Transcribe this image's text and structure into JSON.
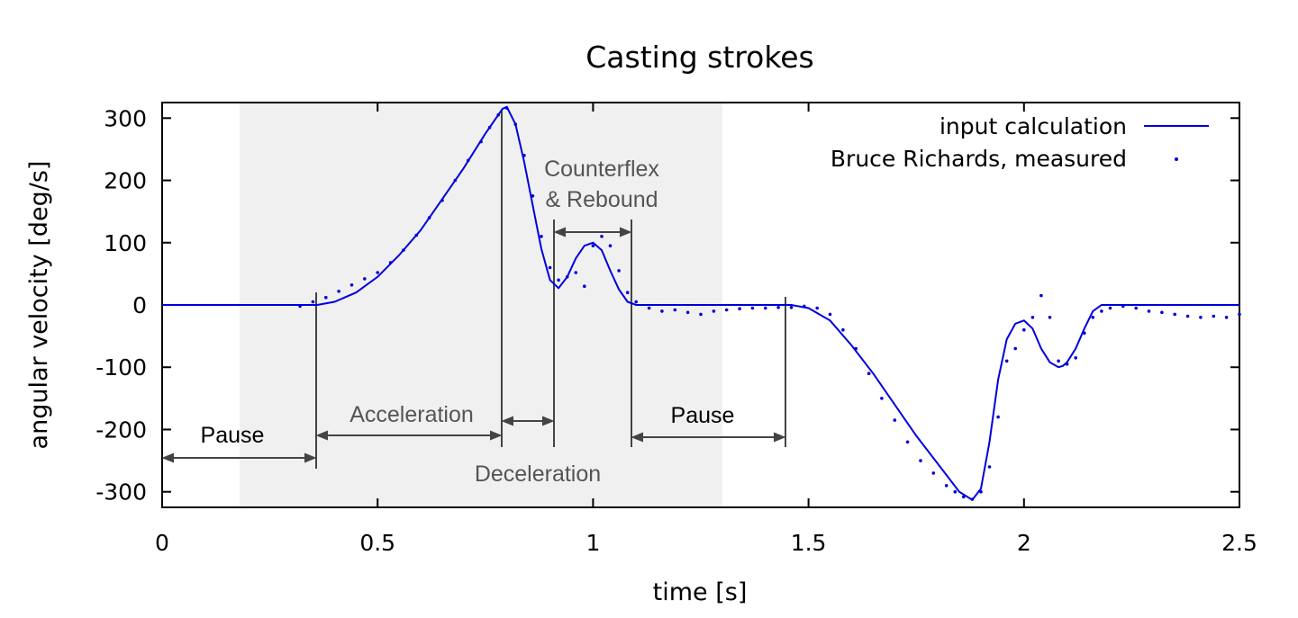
{
  "chart_data": {
    "type": "line",
    "title": "Casting strokes",
    "xlabel": "time [s]",
    "ylabel": "angular velocity [deg/s]",
    "xlim": [
      0,
      2.5
    ],
    "ylim": [
      -325,
      325
    ],
    "x_ticks": [
      0,
      0.5,
      1,
      1.5,
      2,
      2.5
    ],
    "x_tick_labels": [
      "0",
      "0.5",
      "1",
      "1.5",
      "2",
      "2.5"
    ],
    "y_ticks": [
      300,
      200,
      100,
      0,
      -100,
      -200,
      -300
    ],
    "y_tick_labels": [
      "300",
      "200",
      "100",
      "0",
      "-100",
      "-200",
      "-300"
    ],
    "grid": false,
    "legend_position": "top-right",
    "shaded_region": {
      "x_start": 0.18,
      "x_end": 1.3,
      "color": "#f0f0f0"
    },
    "series": [
      {
        "name": "input calculation",
        "style": "line",
        "color": "#0000dd",
        "x": [
          0,
          0.1,
          0.2,
          0.3,
          0.36,
          0.4,
          0.45,
          0.5,
          0.55,
          0.6,
          0.65,
          0.7,
          0.75,
          0.79,
          0.8,
          0.82,
          0.84,
          0.86,
          0.88,
          0.9,
          0.92,
          0.94,
          0.96,
          0.98,
          1.0,
          1.02,
          1.04,
          1.06,
          1.08,
          1.1,
          1.15,
          1.2,
          1.3,
          1.4,
          1.46,
          1.5,
          1.55,
          1.6,
          1.65,
          1.7,
          1.75,
          1.8,
          1.85,
          1.88,
          1.9,
          1.92,
          1.94,
          1.96,
          1.98,
          2.0,
          2.02,
          2.04,
          2.06,
          2.08,
          2.09,
          2.1,
          2.12,
          2.14,
          2.16,
          2.18,
          2.2,
          2.3,
          2.4,
          2.5
        ],
        "y": [
          0,
          0,
          0,
          0,
          0,
          5,
          20,
          45,
          80,
          120,
          170,
          220,
          275,
          315,
          318,
          290,
          230,
          160,
          90,
          40,
          27,
          45,
          75,
          95,
          100,
          88,
          55,
          25,
          5,
          0,
          0,
          0,
          0,
          0,
          0,
          -5,
          -25,
          -65,
          -110,
          -160,
          -210,
          -255,
          -300,
          -313,
          -295,
          -220,
          -120,
          -55,
          -30,
          -25,
          -38,
          -70,
          -92,
          -100,
          -98,
          -92,
          -70,
          -38,
          -10,
          0,
          0,
          0,
          0,
          0
        ]
      },
      {
        "name": "Bruce Richards, measured",
        "style": "dots",
        "color": "#0000dd",
        "x": [
          0.32,
          0.35,
          0.38,
          0.41,
          0.44,
          0.47,
          0.5,
          0.53,
          0.56,
          0.59,
          0.62,
          0.65,
          0.68,
          0.71,
          0.74,
          0.76,
          0.78,
          0.8,
          0.82,
          0.84,
          0.86,
          0.88,
          0.9,
          0.92,
          0.94,
          0.96,
          0.98,
          1.0,
          1.02,
          1.04,
          1.06,
          1.08,
          1.1,
          1.13,
          1.16,
          1.19,
          1.22,
          1.25,
          1.28,
          1.31,
          1.34,
          1.37,
          1.4,
          1.43,
          1.46,
          1.49,
          1.52,
          1.55,
          1.58,
          1.61,
          1.64,
          1.67,
          1.7,
          1.73,
          1.76,
          1.79,
          1.82,
          1.84,
          1.86,
          1.88,
          1.9,
          1.92,
          1.94,
          1.96,
          1.98,
          2.0,
          2.02,
          2.04,
          2.06,
          2.08,
          2.1,
          2.12,
          2.14,
          2.16,
          2.18,
          2.2,
          2.23,
          2.26,
          2.29,
          2.32,
          2.35,
          2.38,
          2.41,
          2.44,
          2.47,
          2.5
        ],
        "y": [
          -2,
          5,
          12,
          22,
          32,
          42,
          52,
          68,
          88,
          112,
          140,
          168,
          200,
          232,
          262,
          285,
          305,
          316,
          290,
          240,
          175,
          110,
          60,
          40,
          45,
          52,
          30,
          95,
          110,
          95,
          55,
          20,
          5,
          -5,
          -10,
          -8,
          -12,
          -15,
          -10,
          -8,
          -6,
          -5,
          -5,
          -4,
          -4,
          -2,
          -5,
          -15,
          -40,
          -70,
          -110,
          -150,
          -185,
          -220,
          -250,
          -270,
          -290,
          -300,
          -308,
          -312,
          -300,
          -260,
          -180,
          -90,
          -70,
          -40,
          -20,
          15,
          -20,
          -90,
          -95,
          -85,
          -45,
          -20,
          -10,
          -5,
          -2,
          -5,
          -10,
          -12,
          -15,
          -18,
          -20,
          -18,
          -20,
          -15
        ]
      }
    ],
    "annotations": [
      {
        "text": "Pause",
        "color": "#000000"
      },
      {
        "text": "Acceleration",
        "color": "#555555"
      },
      {
        "text": "Deceleration",
        "color": "#555555"
      },
      {
        "text": "Counterflex",
        "color": "#555555"
      },
      {
        "text": "& Rebound",
        "color": "#555555"
      },
      {
        "text": "Pause",
        "color": "#000000"
      }
    ]
  }
}
